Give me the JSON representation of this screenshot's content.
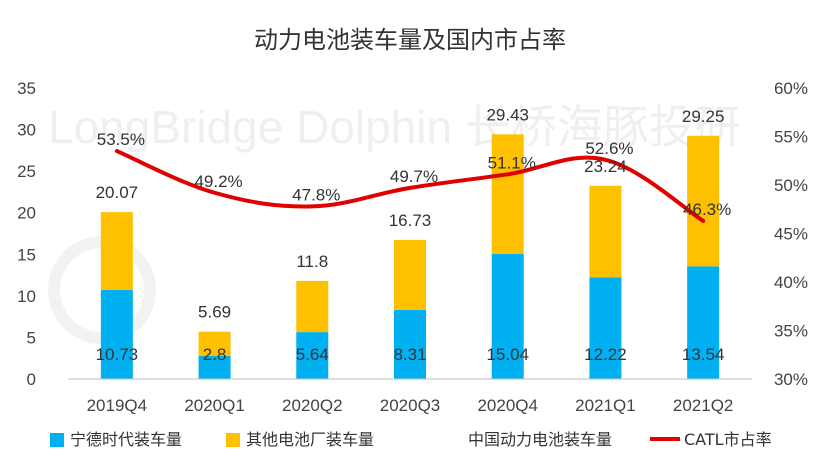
{
  "chart_data": {
    "type": "bar",
    "title": "动力电池装车量及国内市占率",
    "watermark": "LongBridge Dolphin 长桥海豚投研",
    "categories": [
      "2019Q4",
      "2020Q1",
      "2020Q2",
      "2020Q3",
      "2020Q4",
      "2021Q1",
      "2021Q2"
    ],
    "series": [
      {
        "name": "宁德时代装车量",
        "type": "bar",
        "stack": "total",
        "color": "#00B0F0",
        "values": [
          10.73,
          2.8,
          5.64,
          8.31,
          15.04,
          12.22,
          13.54
        ]
      },
      {
        "name": "其他电池厂装车量",
        "type": "bar",
        "stack": "total",
        "color": "#FFC000",
        "values": [
          9.34,
          2.89,
          6.16,
          8.42,
          14.39,
          11.02,
          15.71
        ]
      },
      {
        "name": "中国动力电池装车量",
        "type": "total",
        "values": [
          20.07,
          5.69,
          11.8,
          16.73,
          29.43,
          23.24,
          29.25
        ]
      },
      {
        "name": "CATL市占率",
        "type": "line",
        "axis": "right",
        "color": "#E00000",
        "values": [
          53.5,
          49.2,
          47.8,
          49.7,
          51.1,
          52.6,
          46.3
        ],
        "labels": [
          "53.5%",
          "49.2%",
          "47.8%",
          "49.7%",
          "51.1%",
          "52.6%",
          "46.3%"
        ]
      }
    ],
    "y_left": {
      "min": 0,
      "max": 35,
      "ticks": [
        "0",
        "5",
        "10",
        "15",
        "20",
        "25",
        "30",
        "35"
      ]
    },
    "y_right": {
      "min": 30,
      "max": 60,
      "ticks": [
        "30%",
        "35%",
        "40%",
        "45%",
        "50%",
        "55%",
        "60%"
      ]
    },
    "grid": false,
    "legend": "bottom"
  }
}
